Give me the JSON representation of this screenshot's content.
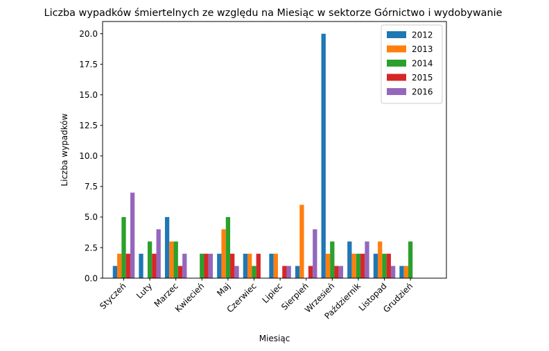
{
  "chart_data": {
    "type": "bar",
    "title": "Liczba wypadków śmiertelnych ze względu na Miesiąc w sektorze Górnictwo i wydobywanie",
    "xlabel": "Miesiąc",
    "ylabel": "Liczba wypadków",
    "ylim": [
      0,
      21.0
    ],
    "yticks": [
      0.0,
      2.5,
      5.0,
      7.5,
      10.0,
      12.5,
      15.0,
      17.5,
      20.0
    ],
    "ytick_labels": [
      "0.0",
      "2.5",
      "5.0",
      "7.5",
      "10.0",
      "12.5",
      "15.0",
      "17.5",
      "20.0"
    ],
    "categories": [
      "Styczeń",
      "Luty",
      "Marzec",
      "Kwiecień",
      "Maj",
      "Czerwiec",
      "Lipiec",
      "Sierpień",
      "Wrzesień",
      "Październik",
      "Listopad",
      "Grudzień"
    ],
    "legend_position": "top-right",
    "grid": false,
    "series": [
      {
        "name": "2012",
        "color": "#1f77b4",
        "values": [
          1,
          2,
          5,
          0,
          2,
          2,
          2,
          1,
          20,
          3,
          2,
          1
        ]
      },
      {
        "name": "2013",
        "color": "#ff7f0e",
        "values": [
          2,
          0,
          3,
          0,
          4,
          2,
          2,
          6,
          2,
          2,
          3,
          1
        ]
      },
      {
        "name": "2014",
        "color": "#2ca02c",
        "values": [
          5,
          3,
          3,
          2,
          5,
          1,
          0,
          0,
          3,
          2,
          2,
          3
        ]
      },
      {
        "name": "2015",
        "color": "#d62728",
        "values": [
          2,
          2,
          1,
          2,
          2,
          2,
          1,
          1,
          1,
          2,
          2,
          0
        ]
      },
      {
        "name": "2016",
        "color": "#9467bd",
        "values": [
          7,
          4,
          2,
          2,
          1,
          0,
          1,
          4,
          1,
          3,
          1,
          0
        ]
      }
    ]
  }
}
